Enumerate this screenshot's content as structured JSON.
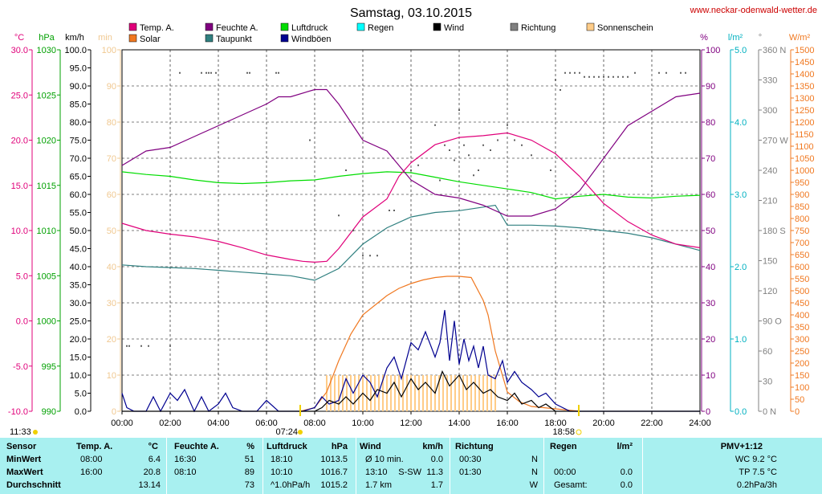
{
  "header": {
    "title": "Samstag, 03.10.2015",
    "url": "www.neckar-odenwald-wetter.de"
  },
  "legend": [
    {
      "label": "Temp. A.",
      "color": "#e0007a"
    },
    {
      "label": "Feuchte A.",
      "color": "#800080"
    },
    {
      "label": "Luftdruck",
      "color": "#00dd00"
    },
    {
      "label": "Regen",
      "color": "#00ffff"
    },
    {
      "label": "Wind",
      "color": "#000000"
    },
    {
      "label": "Richtung",
      "color": "#808080"
    },
    {
      "label": "Sonnenschein",
      "color": "#ffcc88"
    },
    {
      "label": "Solar",
      "color": "#f07820"
    },
    {
      "label": "Taupunkt",
      "color": "#308080"
    },
    {
      "label": "Windböen",
      "color": "#000090"
    }
  ],
  "axes_units": {
    "temp": "°C",
    "pressure": "hPa",
    "wind": "km/h",
    "sun": "min",
    "humidity": "%",
    "rain": "l/m²",
    "dir": "°",
    "solar": "W/m²"
  },
  "axis_ticks": {
    "temp": [
      "30.0",
      "25.0",
      "20.0",
      "15.0",
      "10.0",
      "5.0",
      "0.0",
      "-5.0",
      "-10.0"
    ],
    "pressure": [
      "1030",
      "1025",
      "1020",
      "1015",
      "1010",
      "1005",
      "1000",
      "995",
      "990"
    ],
    "wind": [
      "100.0",
      "95.0",
      "90.0",
      "85.0",
      "80.0",
      "75.0",
      "70.0",
      "65.0",
      "60.0",
      "55.0",
      "50.0",
      "45.0",
      "40.0",
      "35.0",
      "30.0",
      "25.0",
      "20.0",
      "15.0",
      "10.0",
      "5.0",
      "0.0"
    ],
    "sun": [
      "100",
      "90",
      "80",
      "70",
      "60",
      "50",
      "40",
      "30",
      "20",
      "10",
      "0"
    ],
    "humidity": [
      "100",
      "90",
      "80",
      "70",
      "60",
      "50",
      "40",
      "30",
      "20",
      "10",
      "0"
    ],
    "rain": [
      "5.0",
      "4.0",
      "3.0",
      "2.0",
      "1.0",
      "0.0"
    ],
    "dir": [
      "360 N",
      "330",
      "300",
      "270 W",
      "240",
      "210",
      "180 S",
      "150",
      "120",
      "90 O",
      "60",
      "30",
      "0 N"
    ],
    "solar": [
      "1500",
      "1450",
      "1400",
      "1350",
      "1300",
      "1250",
      "1200",
      "1150",
      "1100",
      "1050",
      "1000",
      "950",
      "900",
      "850",
      "800",
      "750",
      "700",
      "650",
      "600",
      "550",
      "500",
      "450",
      "400",
      "350",
      "300",
      "250",
      "200",
      "150",
      "100",
      "50",
      "0"
    ],
    "time": [
      "00:00",
      "02:00",
      "04:00",
      "06:00",
      "08:00",
      "10:00",
      "12:00",
      "14:00",
      "16:00",
      "18:00",
      "20:00",
      "22:00",
      "24:00"
    ]
  },
  "moon_rise": "11:33",
  "sunrise": "07:24",
  "sunset": "18:58",
  "chart_data": {
    "type": "line",
    "title": "Samstag, 03.10.2015",
    "x_unit": "hours",
    "xlim": [
      0,
      24
    ],
    "series": [
      {
        "name": "Temp. A.",
        "axis": "temp",
        "ylim": [
          -10,
          30
        ],
        "x": [
          0,
          1,
          2,
          3,
          4,
          5,
          6,
          7,
          7.5,
          8,
          8.5,
          9,
          10,
          11,
          11.5,
          12,
          13,
          14,
          15,
          16,
          17,
          18,
          19,
          20,
          21,
          22,
          23,
          24
        ],
        "values": [
          10.8,
          10.0,
          9.6,
          9.3,
          8.8,
          8.1,
          7.3,
          6.8,
          6.6,
          6.5,
          6.6,
          8.0,
          11.5,
          13.5,
          16.0,
          17.5,
          19.5,
          20.3,
          20.5,
          20.8,
          20.0,
          18.5,
          16.0,
          13.0,
          11.0,
          9.5,
          8.5,
          8.1
        ]
      },
      {
        "name": "Feuchte A.",
        "axis": "humidity",
        "ylim": [
          0,
          100
        ],
        "x": [
          0,
          1,
          2,
          3,
          4,
          5,
          6,
          6.5,
          7,
          8,
          8.5,
          9,
          10,
          11,
          12,
          13,
          14,
          15,
          16,
          17,
          18,
          19,
          20,
          21,
          22,
          23,
          24
        ],
        "values": [
          68,
          72,
          73,
          76,
          79,
          82,
          85,
          87,
          87,
          89,
          89,
          85,
          75,
          72,
          64,
          60,
          59,
          57,
          54,
          54,
          56,
          61,
          70,
          79,
          83,
          87,
          88
        ]
      },
      {
        "name": "Taupunkt",
        "axis": "temp",
        "ylim": [
          -10,
          30
        ],
        "x": [
          0,
          1,
          2,
          3,
          4,
          5,
          6,
          7,
          8,
          9,
          10,
          11,
          12,
          13,
          14,
          15,
          15.5,
          16,
          17,
          18,
          19,
          20,
          21,
          22,
          23,
          24
        ],
        "values": [
          6.2,
          6.0,
          5.9,
          5.8,
          5.6,
          5.4,
          5.2,
          5.0,
          4.5,
          5.8,
          8.5,
          10.3,
          11.5,
          12.0,
          12.2,
          12.6,
          12.8,
          10.6,
          10.6,
          10.5,
          10.3,
          10.0,
          9.7,
          9.2,
          8.5,
          7.8
        ]
      },
      {
        "name": "Luftdruck",
        "axis": "pressure",
        "ylim": [
          990,
          1030
        ],
        "x": [
          0,
          1,
          2,
          3,
          4,
          5,
          6,
          7,
          8,
          9,
          10,
          11,
          12,
          13,
          14,
          15,
          16,
          17,
          18,
          19,
          20,
          21,
          22,
          23,
          24
        ],
        "values": [
          1016.5,
          1016.2,
          1016.0,
          1015.6,
          1015.3,
          1015.2,
          1015.3,
          1015.5,
          1015.6,
          1016.0,
          1016.3,
          1016.5,
          1016.4,
          1015.9,
          1015.4,
          1015.0,
          1014.6,
          1014.2,
          1013.5,
          1013.8,
          1014.0,
          1013.7,
          1013.6,
          1013.8,
          1013.9
        ]
      },
      {
        "name": "Solar",
        "axis": "solar",
        "ylim": [
          0,
          1500
        ],
        "x": [
          7.4,
          8,
          8.5,
          9,
          9.5,
          10,
          10.5,
          11,
          11.5,
          12,
          12.5,
          13,
          13.5,
          14,
          14.5,
          15,
          15.2,
          15.5,
          16,
          16.5,
          17,
          17.5,
          18,
          18.5,
          19
        ],
        "values": [
          0,
          15,
          80,
          210,
          320,
          400,
          440,
          480,
          510,
          530,
          545,
          555,
          560,
          560,
          555,
          460,
          400,
          250,
          80,
          40,
          20,
          15,
          10,
          5,
          0
        ]
      },
      {
        "name": "Windböen",
        "axis": "wind",
        "ylim": [
          0,
          100
        ],
        "x": [
          0,
          0.2,
          0.5,
          1,
          1.3,
          1.6,
          2,
          2.3,
          2.6,
          3,
          3.3,
          3.6,
          4,
          4.3,
          4.6,
          5,
          5.3,
          5.6,
          6,
          6.5,
          7,
          7.5,
          8,
          8.3,
          8.6,
          9,
          9.3,
          9.6,
          10,
          10.3,
          10.6,
          11,
          11.3,
          11.6,
          12,
          12.3,
          12.6,
          13,
          13.2,
          13.4,
          13.6,
          13.8,
          14,
          14.2,
          14.4,
          14.6,
          14.8,
          15,
          15.2,
          15.5,
          15.8,
          16,
          16.3,
          16.6,
          17,
          17.3,
          17.6,
          18,
          18.3,
          18.6,
          19,
          19.5,
          20,
          21,
          22,
          23,
          24
        ],
        "values": [
          5,
          1,
          0,
          0,
          4,
          0,
          5,
          3,
          6,
          0,
          4,
          0,
          2,
          5,
          1,
          0,
          0,
          0,
          3,
          0,
          0,
          0,
          1,
          4,
          2,
          3,
          9,
          5,
          10,
          8,
          4,
          12,
          15,
          9,
          19,
          17,
          22,
          15,
          19,
          28,
          14,
          25,
          13,
          20,
          14,
          18,
          12,
          18,
          10,
          9,
          14,
          8,
          11,
          8,
          6,
          4,
          5,
          2,
          1,
          0,
          0,
          0,
          0,
          0,
          0,
          0,
          0
        ]
      },
      {
        "name": "Wind",
        "axis": "wind",
        "ylim": [
          0,
          100
        ],
        "x": [
          0,
          8,
          8.3,
          8.6,
          9,
          9.3,
          9.6,
          10,
          10.3,
          10.6,
          11,
          11.3,
          11.6,
          12,
          12.3,
          12.6,
          13,
          13.3,
          13.6,
          14,
          14.3,
          14.6,
          15,
          15.3,
          15.6,
          16,
          16.3,
          16.6,
          17,
          17.3,
          17.6,
          18,
          18.5,
          19,
          24
        ],
        "values": [
          0,
          0,
          1,
          3,
          2,
          4,
          2,
          5,
          3,
          6,
          5,
          8,
          4,
          9,
          6,
          8,
          5,
          11,
          7,
          10,
          6,
          8,
          5,
          6,
          4,
          3,
          5,
          2,
          3,
          1,
          2,
          0,
          0,
          0,
          0
        ]
      },
      {
        "name": "Sonnenschein",
        "axis": "sun",
        "ylim": [
          0,
          100
        ],
        "x": [
          8.5,
          15.5
        ],
        "values": [
          10,
          10
        ]
      },
      {
        "name": "Richtung",
        "axis": "dir",
        "ylim": [
          0,
          360
        ],
        "type": "scatter",
        "x": [
          0.2,
          0.3,
          0.8,
          1.1,
          2.0,
          2.4,
          3.3,
          3.5,
          3.6,
          3.7,
          3.9,
          5.2,
          5.3,
          6.4,
          6.5,
          7.8,
          9.0,
          9.3,
          9.6,
          10.0,
          10.3,
          10.6,
          11.1,
          11.3,
          12.0,
          12.3,
          13.0,
          13.2,
          13.4,
          13.6,
          13.8,
          14.0,
          14.2,
          14.4,
          14.6,
          14.8,
          15.0,
          15.3,
          15.6,
          16.0,
          16.3,
          16.6,
          17.0,
          17.8,
          18.0,
          18.2,
          18.4,
          18.6,
          18.8,
          19.0,
          19.2,
          19.4,
          19.6,
          19.8,
          20.0,
          20.2,
          20.4,
          20.6,
          20.8,
          21.0,
          21.3,
          22.3,
          22.6,
          23.2,
          23.4
        ],
        "values": [
          65,
          65,
          65,
          65,
          65,
          337,
          337,
          337,
          337,
          337,
          337,
          337,
          337,
          337,
          337,
          270,
          195,
          240,
          180,
          155,
          155,
          155,
          200,
          200,
          240,
          245,
          285,
          230,
          265,
          260,
          250,
          300,
          265,
          255,
          235,
          240,
          265,
          260,
          270,
          285,
          270,
          265,
          255,
          240,
          330,
          320,
          337,
          337,
          337,
          337,
          333,
          333,
          333,
          333,
          333,
          333,
          333,
          333,
          333,
          333,
          337,
          337,
          337,
          337,
          337
        ]
      }
    ]
  },
  "table": {
    "headers": [
      {
        "key": "sensor",
        "label": "Sensor"
      },
      {
        "key": "temp",
        "label": "Temp. A.",
        "unit": "°C"
      },
      {
        "key": "hum",
        "label": "Feuchte A.",
        "unit": "%"
      },
      {
        "key": "press",
        "label": "Luftdruck",
        "unit": "hPa"
      },
      {
        "key": "wind",
        "label": "Wind",
        "unit": "km/h"
      },
      {
        "key": "dir",
        "label": "Richtung"
      },
      {
        "key": "rain",
        "label": "Regen",
        "unit": "l/m²"
      },
      {
        "key": "pmv",
        "label": "PMV+1:12"
      }
    ],
    "rows": [
      {
        "label": "MinWert",
        "temp_t": "08:00",
        "temp_v": "6.4",
        "hum_t": "16:30",
        "hum_v": "51",
        "press_t": "18:10",
        "press_v": "1013.5",
        "wind_t": "Ø 10 min.",
        "wind_v": "0.0",
        "dir_t": "00:30",
        "dir_v": "N",
        "rain_t": "",
        "rain_v": "",
        "pmv": "WC 9.2 °C"
      },
      {
        "label": "MaxWert",
        "temp_t": "16:00",
        "temp_v": "20.8",
        "hum_t": "08:10",
        "hum_v": "89",
        "press_t": "10:10",
        "press_v": "1016.7",
        "wind_t": "13:10",
        "wind_d": "S-SW",
        "wind_v": "11.3",
        "dir_t": "01:30",
        "dir_v": "N",
        "rain_t": "00:00",
        "rain_v": "0.0",
        "pmv": "TP 7.5 °C"
      },
      {
        "label": "Durchschnitt",
        "temp_t": "",
        "temp_v": "13.14",
        "hum_t": "",
        "hum_v": "73",
        "press_t": "^1.0hPa/h",
        "press_v": "1015.2",
        "wind_t": "1.7 km",
        "wind_v": "1.7",
        "dir_t": "",
        "dir_v": "W",
        "rain_t": "Gesamt:",
        "rain_v": "0.0",
        "pmv": "0.2hPa/3h"
      }
    ]
  }
}
